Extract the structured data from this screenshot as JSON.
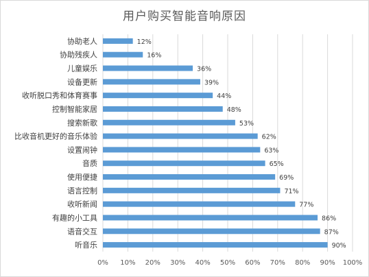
{
  "chart_data": {
    "type": "bar",
    "orientation": "horizontal",
    "title": "用户购买智能音响原因",
    "categories": [
      "协助老人",
      "协助残疾人",
      "儿童娱乐",
      "设备更新",
      "收听脱口秀和体育赛事",
      "控制智能家居",
      "搜索新歌",
      "比收音机更好的音乐体验",
      "设置闹钟",
      "音质",
      "使用便捷",
      "语言控制",
      "收听新闻",
      "有趣的小工具",
      "语音交互",
      "听音乐"
    ],
    "values": [
      12,
      16,
      36,
      39,
      44,
      48,
      53,
      62,
      63,
      65,
      69,
      71,
      77,
      86,
      87,
      90
    ],
    "value_labels": [
      "12%",
      "16%",
      "36%",
      "39%",
      "44%",
      "48%",
      "53%",
      "62%",
      "63%",
      "65%",
      "69%",
      "71%",
      "77%",
      "86%",
      "87%",
      "90%"
    ],
    "x_ticks": [
      "0%",
      "10%",
      "20%",
      "30%",
      "40%",
      "50%",
      "60%",
      "70%",
      "80%",
      "90%",
      "100%"
    ],
    "xlim": [
      0,
      100
    ],
    "grid": true,
    "legend": "none",
    "bar_color": "#5b9bd5",
    "grid_color": "#d9d9d9"
  }
}
